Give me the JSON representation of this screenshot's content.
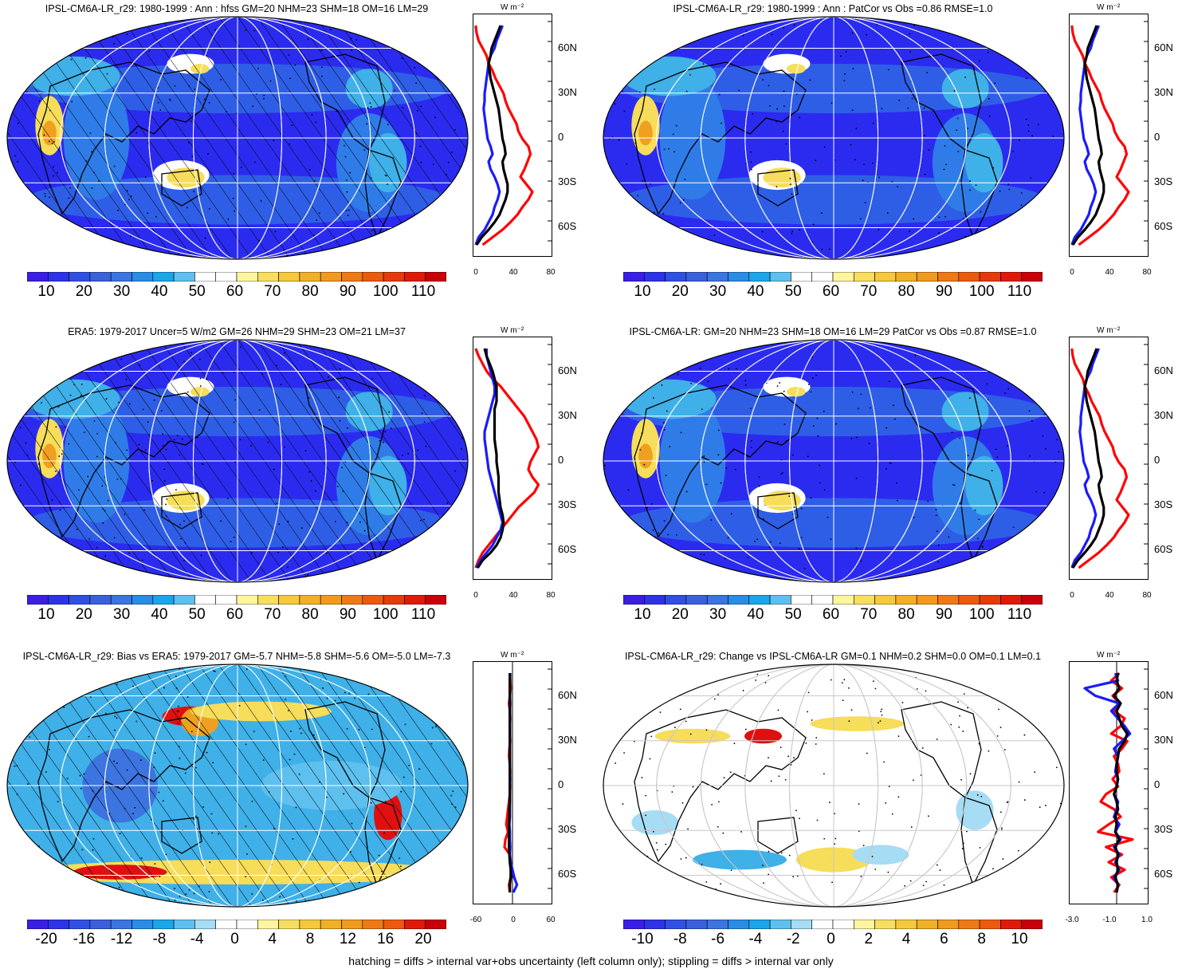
{
  "colors": {
    "ocean_low": "#2b2bf0",
    "ocean_mid": "#2f7ce8",
    "light_blue": "#3fb0e8",
    "white": "#ffffff",
    "yellow": "#f6dd5a",
    "orange": "#f0a020",
    "red": "#e01010",
    "profile_red": "#ff0000",
    "profile_blue": "#1a1aff",
    "profile_black": "#000000"
  },
  "colorbar_abs": [
    "#3a1ee6",
    "#2e33e8",
    "#3050e4",
    "#3a60dc",
    "#3c74e0",
    "#2a8ce4",
    "#1aa6e8",
    "#5ec0ee",
    "#ffffff",
    "#ffffff",
    "#fff5a0",
    "#f8de60",
    "#f6c83c",
    "#f0b028",
    "#f09a1e",
    "#ee7a16",
    "#ec5a10",
    "#e63a0c",
    "#e01a0a",
    "#c8000a"
  ],
  "colorbar_div": [
    "#3a1ee6",
    "#2e33e8",
    "#3050e4",
    "#3a60dc",
    "#3c74e0",
    "#2a8ce4",
    "#1aa6e8",
    "#5ec0ee",
    "#a6dcf4",
    "#ffffff",
    "#ffffff",
    "#fff5a0",
    "#f8de60",
    "#f6c83c",
    "#f0b028",
    "#f09a1e",
    "#ee7a16",
    "#ec5a10",
    "#e01a0a",
    "#c8000a"
  ],
  "panels": [
    {
      "title": "IPSL-CM6A-LR_r29: 1980-1999 : Ann : hfss GM=20 NHM=23 SHM=18 OM=16 LM=29",
      "style": "abs",
      "hatched": true,
      "ticks": [
        "10",
        "20",
        "30",
        "40",
        "50",
        "60",
        "70",
        "80",
        "90",
        "100",
        "110"
      ],
      "unit": "W m⁻²",
      "lat_labels": [
        "60N",
        "30N",
        "0",
        "30S",
        "60S"
      ],
      "x_labels": [
        "0",
        "40",
        "80"
      ],
      "profile": {
        "red": [
          3,
          4,
          6,
          10,
          14,
          16,
          20,
          23,
          27,
          31,
          33,
          36,
          40,
          44,
          46,
          50,
          56,
          58,
          55,
          52,
          48,
          54,
          60,
          56,
          50,
          45,
          38,
          30,
          20,
          10
        ],
        "blue": [
          30,
          27,
          24,
          22,
          18,
          16,
          15,
          14,
          13,
          12,
          12,
          11,
          12,
          13,
          14,
          15,
          18,
          20,
          16,
          18,
          22,
          25,
          27,
          25,
          22,
          20,
          16,
          12,
          6,
          3
        ],
        "black": [
          28,
          25,
          22,
          19,
          18,
          16,
          17,
          18,
          20,
          22,
          24,
          26,
          27,
          28,
          29,
          30,
          32,
          33,
          30,
          31,
          33,
          35,
          35,
          33,
          30,
          27,
          22,
          16,
          9,
          4
        ]
      }
    },
    {
      "title": "IPSL-CM6A-LR_r29: 1980-1999 : Ann : PatCor vs Obs =0.86 RMSE=1.0",
      "style": "abs",
      "hatched": false,
      "ticks": [
        "10",
        "20",
        "30",
        "40",
        "50",
        "60",
        "70",
        "80",
        "90",
        "100",
        "110"
      ],
      "unit": "W m⁻²",
      "lat_labels": [
        "60N",
        "30N",
        "0",
        "30S",
        "60S"
      ],
      "x_labels": [
        "0",
        "40",
        "80"
      ],
      "profile": {
        "red": [
          3,
          4,
          6,
          10,
          14,
          16,
          20,
          23,
          27,
          31,
          33,
          36,
          40,
          44,
          46,
          50,
          56,
          58,
          55,
          52,
          48,
          54,
          60,
          56,
          50,
          45,
          38,
          30,
          20,
          10
        ],
        "blue": [
          30,
          27,
          24,
          22,
          18,
          16,
          15,
          14,
          13,
          12,
          12,
          11,
          12,
          13,
          14,
          15,
          18,
          20,
          16,
          18,
          22,
          25,
          27,
          25,
          22,
          20,
          16,
          12,
          6,
          3
        ],
        "black": [
          28,
          25,
          22,
          19,
          18,
          16,
          17,
          18,
          20,
          22,
          24,
          26,
          27,
          28,
          29,
          30,
          32,
          33,
          30,
          31,
          33,
          35,
          35,
          33,
          30,
          27,
          22,
          16,
          9,
          4
        ]
      }
    },
    {
      "title": "ERA5: 1979-2017 Uncer=5 W/m2 GM=26 NHM=29 SHM=23 OM=21 LM=37",
      "style": "abs",
      "hatched": true,
      "ticks": [
        "10",
        "20",
        "30",
        "40",
        "50",
        "60",
        "70",
        "80",
        "90",
        "100",
        "110"
      ],
      "unit": "W m⁻²",
      "lat_labels": [
        "60N",
        "30N",
        "0",
        "30S",
        "60S"
      ],
      "x_labels": [
        "0",
        "40",
        "80"
      ],
      "profile": {
        "red": [
          3,
          6,
          10,
          14,
          20,
          28,
          34,
          40,
          46,
          52,
          56,
          60,
          64,
          66,
          62,
          58,
          56,
          60,
          66,
          62,
          54,
          46,
          40,
          34,
          28,
          22,
          16,
          10,
          6,
          3
        ],
        "blue": [
          14,
          14,
          16,
          18,
          20,
          22,
          22,
          20,
          18,
          16,
          14,
          12,
          12,
          13,
          14,
          15,
          16,
          18,
          20,
          22,
          24,
          26,
          28,
          30,
          28,
          24,
          20,
          14,
          8,
          4
        ],
        "black": [
          12,
          14,
          17,
          20,
          22,
          24,
          24,
          24,
          22,
          22,
          22,
          22,
          22,
          23,
          24,
          24,
          25,
          26,
          26,
          26,
          27,
          28,
          30,
          31,
          30,
          28,
          24,
          18,
          10,
          5
        ]
      }
    },
    {
      "title": "IPSL-CM6A-LR: GM=20 NHM=23 SHM=18 OM=16 LM=29 PatCor vs Obs =0.87 RMSE=1.0",
      "style": "abs",
      "hatched": false,
      "ticks": [
        "10",
        "20",
        "30",
        "40",
        "50",
        "60",
        "70",
        "80",
        "90",
        "100",
        "110"
      ],
      "unit": "W m⁻²",
      "lat_labels": [
        "60N",
        "30N",
        "0",
        "30S",
        "60S"
      ],
      "x_labels": [
        "0",
        "40",
        "80"
      ],
      "profile": {
        "red": [
          3,
          4,
          6,
          10,
          14,
          16,
          20,
          23,
          27,
          31,
          33,
          36,
          40,
          44,
          46,
          50,
          56,
          58,
          55,
          52,
          48,
          54,
          60,
          56,
          50,
          45,
          38,
          30,
          20,
          10
        ],
        "blue": [
          30,
          27,
          24,
          22,
          18,
          16,
          15,
          14,
          13,
          12,
          12,
          11,
          12,
          13,
          14,
          15,
          18,
          20,
          16,
          18,
          22,
          25,
          27,
          25,
          22,
          20,
          16,
          12,
          6,
          3
        ],
        "black": [
          28,
          25,
          22,
          19,
          18,
          16,
          17,
          18,
          20,
          22,
          24,
          26,
          27,
          28,
          29,
          30,
          32,
          33,
          30,
          31,
          33,
          35,
          35,
          33,
          30,
          27,
          22,
          16,
          9,
          4
        ]
      }
    },
    {
      "title": "IPSL-CM6A-LR_r29: Bias vs ERA5: 1979-2017 GM=-5.7 NHM=-5.8 SHM=-5.6 OM=-5.0 LM=-7.3",
      "style": "bias",
      "hatched": true,
      "ticks": [
        "-20",
        "-16",
        "-12",
        "-8",
        "-4",
        "0",
        "4",
        "8",
        "12",
        "16",
        "20"
      ],
      "unit": "W m⁻²",
      "lat_labels": [
        "60N",
        "30N",
        "0",
        "30S",
        "60S"
      ],
      "x_labels": [
        "-60",
        "0",
        "60"
      ],
      "profile": {
        "red": [
          -6,
          -5,
          -4,
          -6,
          -8,
          -6,
          -5,
          -6,
          -6,
          -5,
          -7,
          -8,
          -6,
          -5,
          -6,
          -5,
          -6,
          -8,
          -10,
          -12,
          -14,
          -10,
          -16,
          -18,
          -6,
          -5,
          -2,
          -4,
          -8,
          -6
        ],
        "blue": [
          -5,
          -6,
          -6,
          -6,
          -5,
          -6,
          -6,
          -6,
          -6,
          -6,
          -6,
          -6,
          -6,
          -6,
          -5,
          -6,
          -6,
          -6,
          -6,
          -6,
          -7,
          -6,
          -6,
          -5,
          -6,
          -4,
          0,
          4,
          10,
          2
        ],
        "black": [
          -6,
          -6,
          -6,
          -6,
          -6,
          -6,
          -6,
          -6,
          -6,
          -6,
          -6,
          -6,
          -6,
          -6,
          -6,
          -6,
          -6,
          -6,
          -7,
          -7,
          -8,
          -8,
          -8,
          -8,
          -7,
          -6,
          -4,
          -4,
          -6,
          -6
        ]
      }
    },
    {
      "title": "IPSL-CM6A-LR_r29: Change vs IPSL-CM6A-LR GM=0.1 NHM=0.2 SHM=0.0 OM=0.1 LM=0.1",
      "style": "change",
      "hatched": false,
      "ticks": [
        "-10",
        "-8",
        "-6",
        "-4",
        "-2",
        "0",
        "2",
        "4",
        "6",
        "8",
        "10"
      ],
      "unit": "W m⁻²",
      "lat_labels": [
        "60N",
        "30N",
        "0",
        "30S",
        "60S"
      ],
      "x_labels": [
        "-3.0",
        "-1.0",
        "1.0"
      ],
      "profile": {
        "red": [
          0.2,
          -0.4,
          0.4,
          -0.3,
          0.2,
          -0.2,
          0.6,
          0.3,
          -0.4,
          0.8,
          0.4,
          -0.2,
          0.1,
          0.2,
          -0.3,
          0.1,
          -0.8,
          -1.2,
          -0.2,
          0.3,
          -0.6,
          -1.4,
          1.2,
          -0.8,
          0.4,
          -0.6,
          0.6,
          -0.4,
          0.2,
          -0.2
        ],
        "blue": [
          -0.1,
          0.1,
          -2.4,
          -1.6,
          0.2,
          -0.4,
          0.1,
          0.6,
          1.0,
          0.4,
          -0.2,
          0.1,
          0.0,
          -0.1,
          0.1,
          0.0,
          -0.2,
          0.1,
          0.0,
          -0.2,
          0.2,
          -0.1,
          0.3,
          -0.2,
          0.2,
          -0.1,
          0.2,
          -0.2,
          0.1,
          0.0
        ],
        "black": [
          0.1,
          0.0,
          0.2,
          -0.2,
          0.3,
          0.0,
          0.2,
          0.4,
          0.8,
          0.6,
          0.2,
          0.1,
          0.0,
          0.0,
          0.1,
          0.0,
          -0.2,
          0.0,
          0.1,
          -0.1,
          0.0,
          -0.1,
          0.2,
          -0.1,
          0.1,
          0.0,
          0.1,
          -0.1,
          0.1,
          0.0
        ]
      }
    }
  ],
  "footnote": "hatching = diffs > internal var+obs uncertainty (left column only); stippling = diffs > internal var only"
}
